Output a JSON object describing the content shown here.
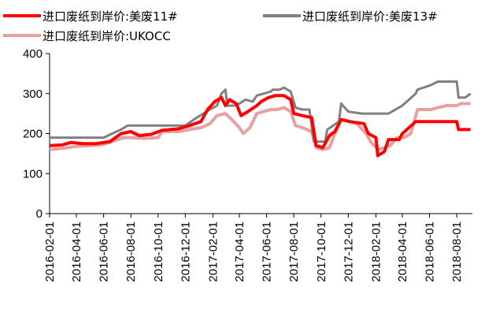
{
  "chart_data": {
    "type": "line",
    "title": "",
    "xlabel": "",
    "ylabel": "",
    "ylim": [
      0,
      400
    ],
    "yticks": [
      "0",
      "100",
      "200",
      "300",
      "400"
    ],
    "grid": false,
    "legend": "top",
    "x_tick_labels": [
      "2016-02-01",
      "2016-04-01",
      "2016-06-01",
      "2016-08-01",
      "2016-10-01",
      "2016-12-01",
      "2017-02-01",
      "2017-04-01",
      "2017-06-01",
      "2017-08-01",
      "2017-10-01",
      "2017-12-01",
      "2018-02-01",
      "2018-04-01",
      "2018-06-01",
      "2018-08-01"
    ],
    "series": [
      {
        "name": "进口废纸到岸价:美废11#",
        "color": "#ff0000",
        "points": [
          [
            "2016-02-01",
            170
          ],
          [
            "2016-03-01",
            172
          ],
          [
            "2016-03-20",
            178
          ],
          [
            "2016-04-15",
            175
          ],
          [
            "2016-05-15",
            175
          ],
          [
            "2016-06-15",
            180
          ],
          [
            "2016-07-10",
            200
          ],
          [
            "2016-08-01",
            205
          ],
          [
            "2016-08-20",
            195
          ],
          [
            "2016-09-15",
            198
          ],
          [
            "2016-10-10",
            208
          ],
          [
            "2016-11-15",
            212
          ],
          [
            "2016-12-10",
            220
          ],
          [
            "2017-01-05",
            230
          ],
          [
            "2017-01-20",
            260
          ],
          [
            "2017-02-05",
            280
          ],
          [
            "2017-02-20",
            290
          ],
          [
            "2017-03-01",
            270
          ],
          [
            "2017-03-10",
            285
          ],
          [
            "2017-03-25",
            275
          ],
          [
            "2017-04-05",
            245
          ],
          [
            "2017-04-20",
            255
          ],
          [
            "2017-05-10",
            270
          ],
          [
            "2017-05-20",
            280
          ],
          [
            "2017-06-05",
            290
          ],
          [
            "2017-06-20",
            295
          ],
          [
            "2017-07-10",
            295
          ],
          [
            "2017-07-25",
            285
          ],
          [
            "2017-08-01",
            250
          ],
          [
            "2017-08-20",
            245
          ],
          [
            "2017-09-10",
            240
          ],
          [
            "2017-09-20",
            170
          ],
          [
            "2017-10-05",
            165
          ],
          [
            "2017-10-20",
            195
          ],
          [
            "2017-11-01",
            205
          ],
          [
            "2017-11-15",
            235
          ],
          [
            "2017-12-05",
            230
          ],
          [
            "2018-01-05",
            225
          ],
          [
            "2018-01-15",
            200
          ],
          [
            "2018-02-01",
            190
          ],
          [
            "2018-02-05",
            145
          ],
          [
            "2018-02-20",
            155
          ],
          [
            "2018-03-01",
            185
          ],
          [
            "2018-03-25",
            185
          ],
          [
            "2018-04-01",
            200
          ],
          [
            "2018-05-01",
            230
          ],
          [
            "2018-06-01",
            230
          ],
          [
            "2018-07-01",
            230
          ],
          [
            "2018-08-01",
            230
          ],
          [
            "2018-08-05",
            210
          ],
          [
            "2018-09-01",
            210
          ]
        ]
      },
      {
        "name": "进口废纸到岸价:美废13#",
        "color": "#808080",
        "points": [
          [
            "2016-02-01",
            190
          ],
          [
            "2016-03-01",
            190
          ],
          [
            "2016-04-01",
            190
          ],
          [
            "2016-05-01",
            190
          ],
          [
            "2016-06-01",
            190
          ],
          [
            "2016-06-20",
            200
          ],
          [
            "2016-07-10",
            210
          ],
          [
            "2016-07-25",
            220
          ],
          [
            "2016-08-15",
            220
          ],
          [
            "2016-10-01",
            220
          ],
          [
            "2016-12-01",
            220
          ],
          [
            "2016-12-20",
            235
          ],
          [
            "2017-01-10",
            250
          ],
          [
            "2017-01-25",
            260
          ],
          [
            "2017-02-10",
            270
          ],
          [
            "2017-02-20",
            300
          ],
          [
            "2017-03-01",
            310
          ],
          [
            "2017-03-05",
            270
          ],
          [
            "2017-03-20",
            270
          ],
          [
            "2017-04-01",
            275
          ],
          [
            "2017-04-15",
            285
          ],
          [
            "2017-05-01",
            280
          ],
          [
            "2017-05-10",
            295
          ],
          [
            "2017-05-25",
            300
          ],
          [
            "2017-06-10",
            305
          ],
          [
            "2017-06-15",
            310
          ],
          [
            "2017-07-01",
            310
          ],
          [
            "2017-07-10",
            315
          ],
          [
            "2017-07-25",
            305
          ],
          [
            "2017-08-05",
            265
          ],
          [
            "2017-08-20",
            260
          ],
          [
            "2017-09-05",
            260
          ],
          [
            "2017-09-15",
            180
          ],
          [
            "2017-10-10",
            180
          ],
          [
            "2017-10-15",
            210
          ],
          [
            "2017-11-10",
            230
          ],
          [
            "2017-11-15",
            275
          ],
          [
            "2017-12-01",
            255
          ],
          [
            "2018-01-01",
            250
          ],
          [
            "2018-02-01",
            250
          ],
          [
            "2018-03-01",
            250
          ],
          [
            "2018-04-01",
            270
          ],
          [
            "2018-05-01",
            300
          ],
          [
            "2018-05-05",
            310
          ],
          [
            "2018-06-01",
            320
          ],
          [
            "2018-06-20",
            330
          ],
          [
            "2018-07-15",
            330
          ],
          [
            "2018-08-01",
            330
          ],
          [
            "2018-08-05",
            290
          ],
          [
            "2018-08-20",
            290
          ],
          [
            "2018-09-01",
            300
          ]
        ]
      },
      {
        "name": "进口废纸到岸价:UKOCC",
        "color": "#e8a0a0",
        "points": [
          [
            "2016-02-01",
            160
          ],
          [
            "2016-03-01",
            163
          ],
          [
            "2016-04-01",
            168
          ],
          [
            "2016-05-01",
            170
          ],
          [
            "2016-06-01",
            173
          ],
          [
            "2016-06-20",
            180
          ],
          [
            "2016-07-15",
            190
          ],
          [
            "2016-08-01",
            190
          ],
          [
            "2016-09-01",
            188
          ],
          [
            "2016-10-01",
            190
          ],
          [
            "2016-10-10",
            205
          ],
          [
            "2016-11-15",
            205
          ],
          [
            "2016-12-10",
            210
          ],
          [
            "2017-01-05",
            215
          ],
          [
            "2017-01-25",
            225
          ],
          [
            "2017-02-10",
            245
          ],
          [
            "2017-03-01",
            250
          ],
          [
            "2017-03-15",
            235
          ],
          [
            "2017-04-01",
            215
          ],
          [
            "2017-04-10",
            200
          ],
          [
            "2017-04-25",
            215
          ],
          [
            "2017-05-10",
            250
          ],
          [
            "2017-05-25",
            255
          ],
          [
            "2017-06-10",
            260
          ],
          [
            "2017-06-25",
            260
          ],
          [
            "2017-07-10",
            265
          ],
          [
            "2017-07-25",
            255
          ],
          [
            "2017-08-05",
            220
          ],
          [
            "2017-08-20",
            215
          ],
          [
            "2017-09-10",
            205
          ],
          [
            "2017-09-20",
            165
          ],
          [
            "2017-10-05",
            160
          ],
          [
            "2017-10-20",
            165
          ],
          [
            "2017-11-01",
            200
          ],
          [
            "2017-11-15",
            235
          ],
          [
            "2017-12-05",
            230
          ],
          [
            "2017-12-20",
            225
          ],
          [
            "2018-01-10",
            200
          ],
          [
            "2018-01-20",
            180
          ],
          [
            "2018-02-05",
            160
          ],
          [
            "2018-02-20",
            165
          ],
          [
            "2018-03-05",
            170
          ],
          [
            "2018-03-20",
            190
          ],
          [
            "2018-04-05",
            190
          ],
          [
            "2018-04-20",
            200
          ],
          [
            "2018-05-05",
            260
          ],
          [
            "2018-05-20",
            260
          ],
          [
            "2018-06-05",
            260
          ],
          [
            "2018-06-20",
            265
          ],
          [
            "2018-07-10",
            270
          ],
          [
            "2018-08-01",
            270
          ],
          [
            "2018-08-10",
            275
          ],
          [
            "2018-09-01",
            275
          ]
        ]
      }
    ]
  }
}
